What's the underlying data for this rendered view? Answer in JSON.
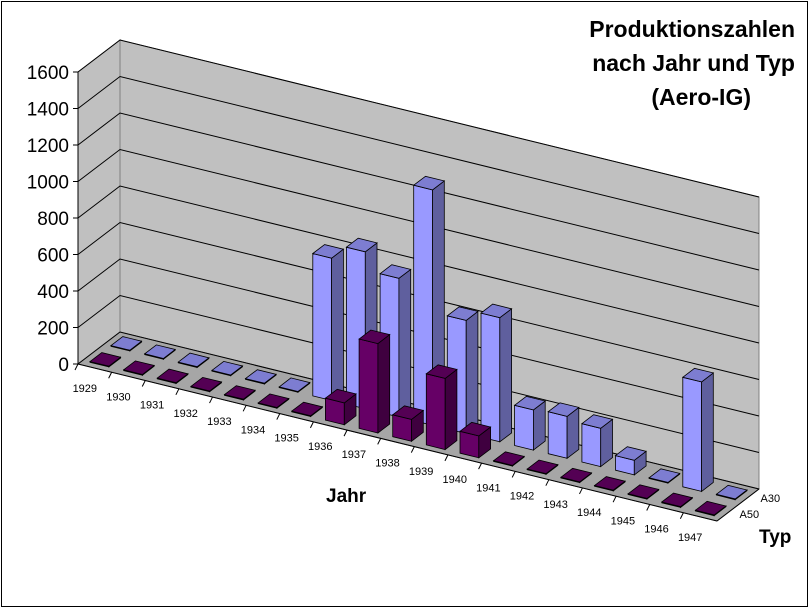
{
  "chart_data": {
    "type": "bar",
    "title": "Produktionszahlen nach Jahr und Typ (Aero-IG)",
    "title_lines": [
      "Produktionszahlen",
      "nach Jahr und Typ",
      "(Aero-IG)"
    ],
    "xlabel": "Jahr",
    "zlabel": "Typ",
    "categories": [
      "1929",
      "1930",
      "1931",
      "1932",
      "1933",
      "1934",
      "1935",
      "1936",
      "1937",
      "1938",
      "1939",
      "1940",
      "1941",
      "1942",
      "1943",
      "1944",
      "1945",
      "1946",
      "1947"
    ],
    "series": [
      {
        "name": "A30",
        "color": "#9999ff",
        "values": [
          0,
          0,
          0,
          0,
          0,
          0,
          780,
          860,
          760,
          1290,
          620,
          680,
          220,
          230,
          210,
          80,
          0,
          600,
          0
        ]
      },
      {
        "name": "A50",
        "color": "#660066",
        "values": [
          0,
          0,
          0,
          0,
          0,
          0,
          0,
          120,
          490,
          120,
          390,
          120,
          0,
          0,
          0,
          0,
          0,
          0,
          0
        ]
      }
    ],
    "yticks": [
      0,
      200,
      400,
      600,
      800,
      1000,
      1200,
      1400,
      1600
    ],
    "ylim": [
      0,
      1600
    ],
    "grid": true
  }
}
